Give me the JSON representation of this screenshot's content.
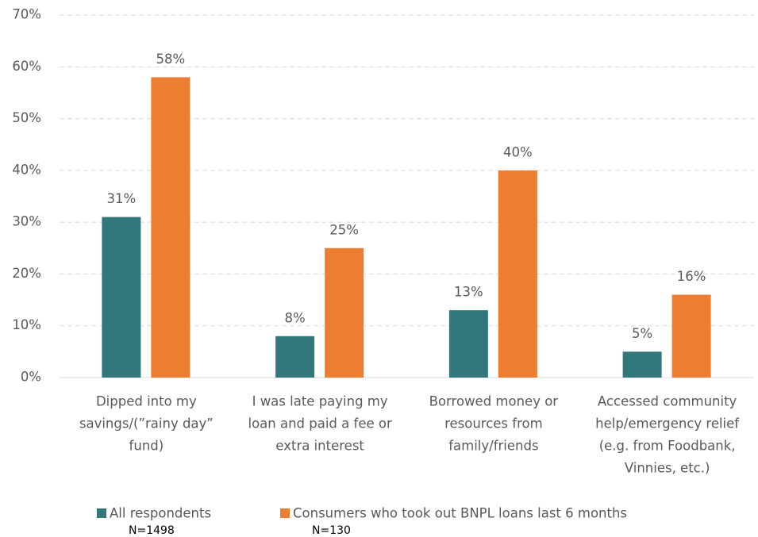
{
  "chart_data": {
    "type": "bar",
    "categories": [
      [
        "Dipped into my",
        "savings/(”rainy day”",
        "fund)"
      ],
      [
        "I was late paying my",
        "loan and paid a fee or",
        "extra interest"
      ],
      [
        "Borrowed money or",
        "resources from",
        "family/friends"
      ],
      [
        "Accessed community",
        "help/emergency relief",
        "(e.g. from Foodbank,",
        "Vinnies, etc.)"
      ]
    ],
    "series": [
      {
        "name": "All respondents",
        "sample": "N=1498",
        "color": "#31777b",
        "values": [
          31,
          8,
          13,
          5
        ],
        "value_labels": [
          "31%",
          "8%",
          "13%",
          "5%"
        ]
      },
      {
        "name": "Consumers who took out BNPL loans last 6 months",
        "sample": "N=130",
        "color": "#ed7d31",
        "values": [
          58,
          25,
          40,
          16
        ],
        "value_labels": [
          "58%",
          "25%",
          "40%",
          "16%"
        ]
      }
    ],
    "ylim": [
      0,
      70
    ],
    "yticks": [
      {
        "value": 0,
        "label": "0%"
      },
      {
        "value": 10,
        "label": "10%"
      },
      {
        "value": 20,
        "label": "20%"
      },
      {
        "value": 30,
        "label": "30%"
      },
      {
        "value": 40,
        "label": "40%"
      },
      {
        "value": 50,
        "label": "50%"
      },
      {
        "value": 60,
        "label": "60%"
      },
      {
        "value": 70,
        "label": "70%"
      }
    ],
    "grid": true,
    "legend": "bottom"
  }
}
